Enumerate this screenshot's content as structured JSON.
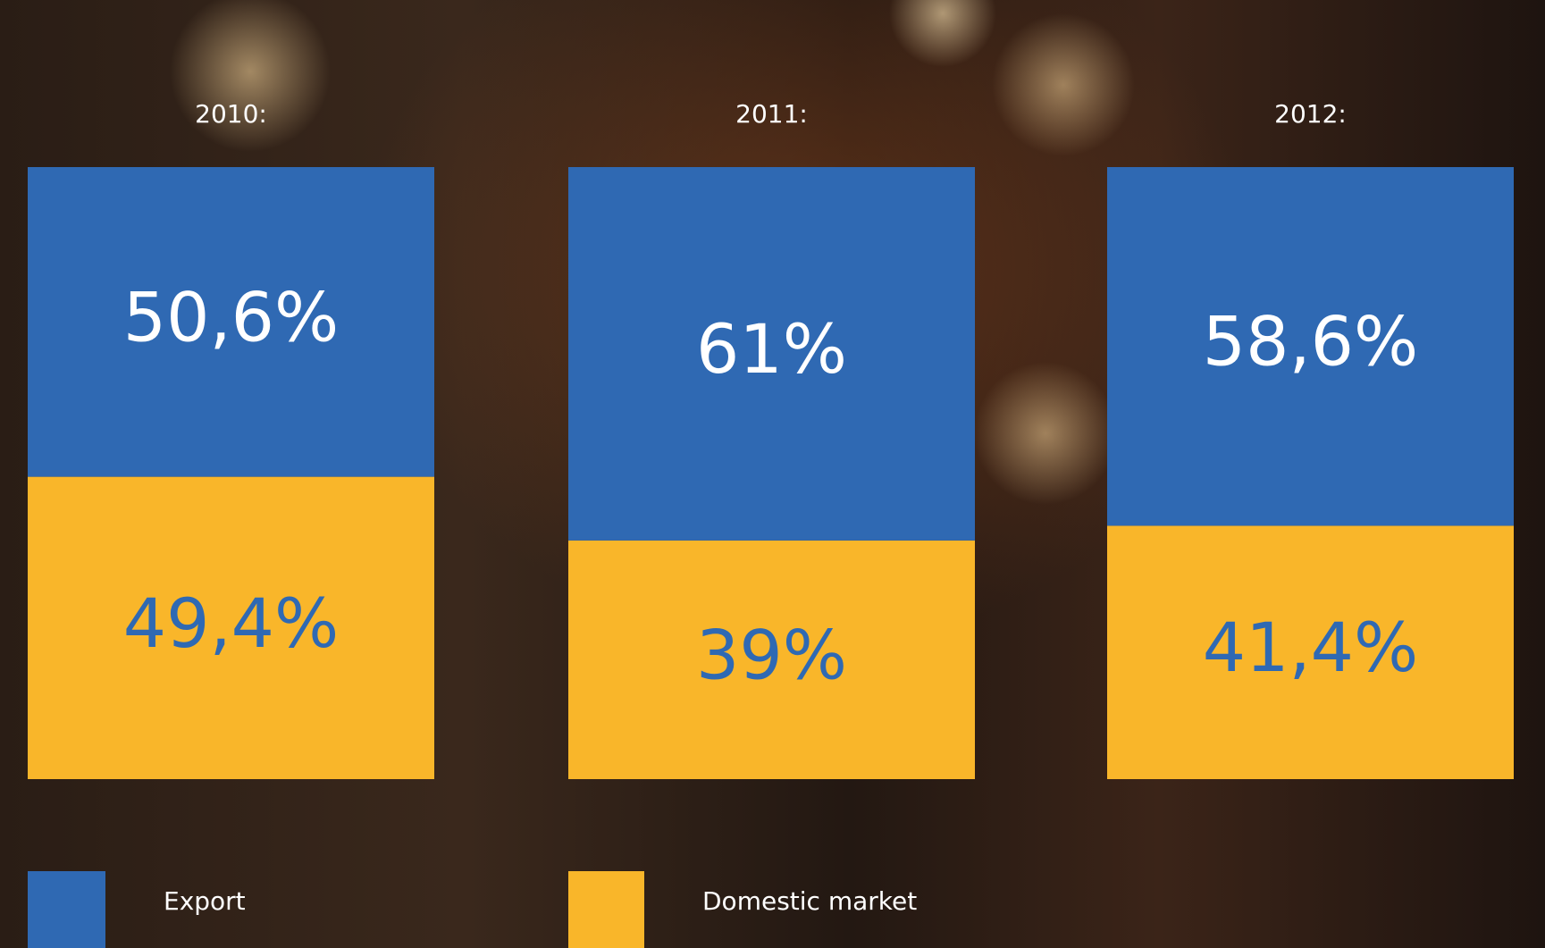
{
  "chart_data": {
    "type": "stacked_bar",
    "categories": [
      "2010:",
      "2011:",
      "2012:"
    ],
    "series": [
      {
        "name": "Export",
        "color": "#2f69b3",
        "values": [
          50.6,
          61,
          58.6
        ],
        "value_labels": [
          "50,6%",
          "61%",
          "58,6%"
        ]
      },
      {
        "name": "Domestic market",
        "color": "#f9b62a",
        "values": [
          49.4,
          39,
          41.4
        ],
        "value_labels": [
          "49,4%",
          "39%",
          "41,4%"
        ]
      }
    ],
    "ylim": [
      0,
      100
    ]
  }
}
